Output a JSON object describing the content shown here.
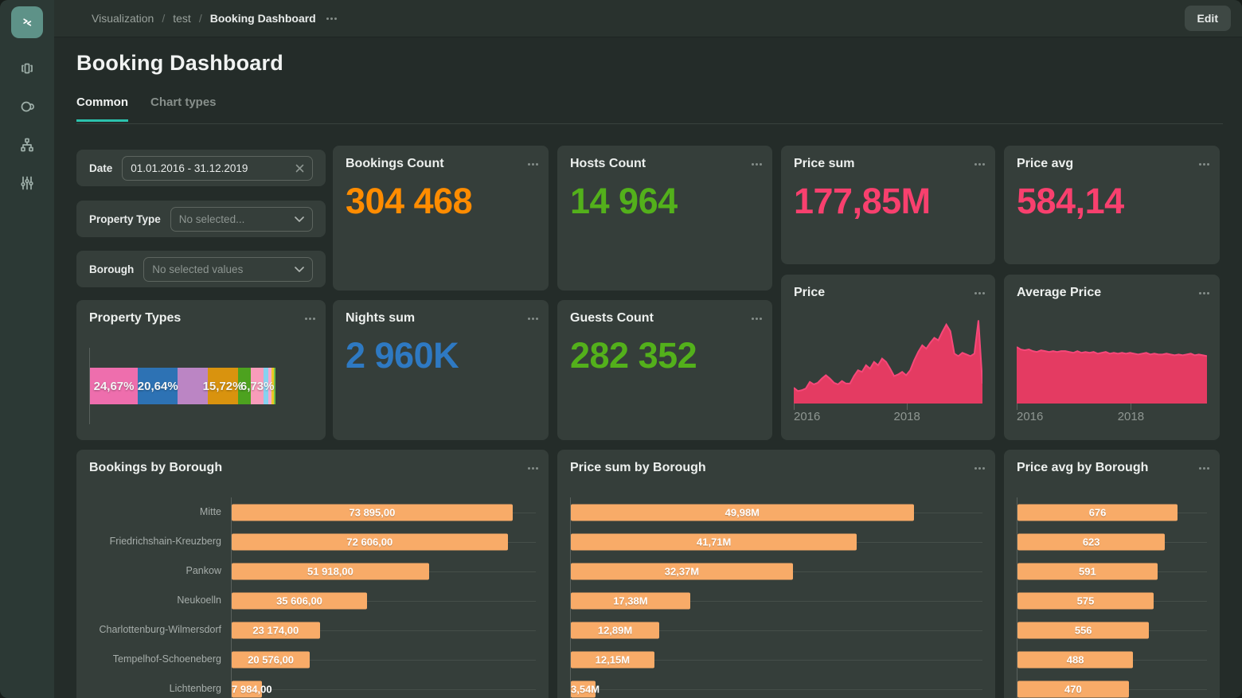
{
  "colors": {
    "accent_teal": "#2bc2ad",
    "logo_teal": "#5e9288",
    "card_bg": "#353e3a",
    "page_bg": "#242c29"
  },
  "sidebar": {
    "icons": [
      "app-logo",
      "charts",
      "services",
      "navigation",
      "settings"
    ]
  },
  "header": {
    "breadcrumb": [
      "Visualization",
      "test",
      "Booking Dashboard"
    ],
    "edit_label": "Edit"
  },
  "page": {
    "title": "Booking Dashboard",
    "tabs": [
      {
        "label": "Common",
        "active": true
      },
      {
        "label": "Chart types",
        "active": false
      }
    ]
  },
  "filters": {
    "date": {
      "label": "Date",
      "value": "01.01.2016 - 31.12.2019"
    },
    "property_type": {
      "label": "Property Type",
      "placeholder": "No selected..."
    },
    "borough": {
      "label": "Borough",
      "placeholder": "No selected values"
    }
  },
  "kpis": [
    {
      "title": "Bookings Count",
      "value": "304 468",
      "color": "#ff8c00"
    },
    {
      "title": "Hosts Count",
      "value": "14 964",
      "color": "#53b01b"
    },
    {
      "title": "Price sum",
      "value": "177,85M",
      "color": "#f8406e"
    },
    {
      "title": "Price avg",
      "value": "584,14",
      "color": "#f8406e"
    },
    {
      "title": "Nights sum",
      "value": "2 960K",
      "color": "#2e79c2"
    },
    {
      "title": "Guests Count",
      "value": "282 352",
      "color": "#53b01b"
    }
  ],
  "chart_data": [
    {
      "name": "property_types",
      "type": "bar",
      "subtype": "stacked-percent",
      "title": "Property Types",
      "segments": [
        {
          "label": "24,67%",
          "value": 24.67,
          "color": "#ee6ead"
        },
        {
          "label": "20,64%",
          "value": 20.64,
          "color": "#2d72b4"
        },
        {
          "label": "",
          "value": 15.4,
          "color": "#bb85c4"
        },
        {
          "label": "15,72%",
          "value": 15.72,
          "color": "#d9930e"
        },
        {
          "label": "",
          "value": 6.5,
          "color": "#4da21f"
        },
        {
          "label": "6,73%",
          "value": 6.73,
          "color": "#f89cba"
        },
        {
          "label": "",
          "value": 2.4,
          "color": "#86d2f0"
        },
        {
          "label": "",
          "value": 1.6,
          "color": "#f4a9cf"
        },
        {
          "label": "",
          "value": 1.2,
          "color": "#eec727"
        },
        {
          "label": "",
          "value": 0.8,
          "color": "#6fc043"
        }
      ]
    },
    {
      "name": "price",
      "type": "area",
      "title": "Price",
      "color_fill": "#e43b62",
      "color_line": "#f64879",
      "x_ticks": [
        "2016",
        "2018"
      ],
      "x_tick_pos": [
        0,
        0.6
      ],
      "y_axis": "unlabeled (heights estimated, % of plot)",
      "ymax": 100,
      "values": [
        19,
        15,
        16,
        18,
        26,
        23,
        25,
        30,
        34,
        30,
        25,
        23,
        27,
        24,
        24,
        33,
        40,
        38,
        46,
        42,
        50,
        46,
        54,
        50,
        42,
        33,
        35,
        38,
        34,
        40,
        52,
        62,
        70,
        66,
        73,
        79,
        76,
        86,
        95,
        87,
        60,
        57,
        61,
        59,
        57,
        60,
        100,
        24
      ]
    },
    {
      "name": "average_price",
      "type": "area",
      "title": "Average Price",
      "color_fill": "#e43b62",
      "color_line": "#f64879",
      "x_ticks": [
        "2016",
        "2018"
      ],
      "x_tick_pos": [
        0,
        0.6
      ],
      "y_axis": "unlabeled (heights estimated, % of plot)",
      "ymax": 100,
      "values": [
        68,
        65,
        64,
        65,
        63,
        62,
        64,
        63,
        62,
        63,
        62,
        63,
        63,
        62,
        61,
        63,
        61,
        62,
        61,
        62,
        60,
        61,
        62,
        60,
        61,
        60,
        61,
        60,
        61,
        60,
        59,
        60,
        61,
        59,
        60,
        59,
        59,
        60,
        59,
        58,
        59,
        58,
        59,
        60,
        58,
        59,
        58,
        57
      ]
    },
    {
      "name": "bookings_by_borough",
      "type": "bar",
      "orientation": "horizontal",
      "title": "Bookings by Borough",
      "categories": [
        "Mitte",
        "Friedrichshain-Kreuzberg",
        "Pankow",
        "Neukoelln",
        "Charlottenburg-Wilmersdorf",
        "Tempelhof-Schoeneberg",
        "Lichtenberg"
      ],
      "values": [
        73895,
        72606,
        51918,
        35606,
        23174,
        20576,
        7984
      ],
      "value_labels": [
        "73 895,00",
        "72 606,00",
        "51 918,00",
        "35 606,00",
        "23 174,00",
        "20 576,00",
        "7 984,00"
      ],
      "bar_color": "#f8ab68",
      "xmax": 80000
    },
    {
      "name": "price_sum_by_borough",
      "type": "bar",
      "orientation": "horizontal",
      "title": "Price sum by Borough",
      "categories": [],
      "values": [
        49.98,
        41.71,
        32.37,
        17.38,
        12.89,
        12.15,
        3.54
      ],
      "value_labels": [
        "49,98M",
        "41,71M",
        "32,37M",
        "17,38M",
        "12,89M",
        "12,15M",
        "3,54M"
      ],
      "bar_color": "#f8ab68",
      "xmax": 60
    },
    {
      "name": "price_avg_by_borough",
      "type": "bar",
      "orientation": "horizontal",
      "title": "Price avg by Borough",
      "categories": [],
      "values": [
        676,
        623,
        591,
        575,
        556,
        488,
        470
      ],
      "value_labels": [
        "676",
        "623",
        "591",
        "575",
        "556",
        "488",
        "470"
      ],
      "bar_color": "#f8ab68",
      "xmax": 800
    }
  ]
}
